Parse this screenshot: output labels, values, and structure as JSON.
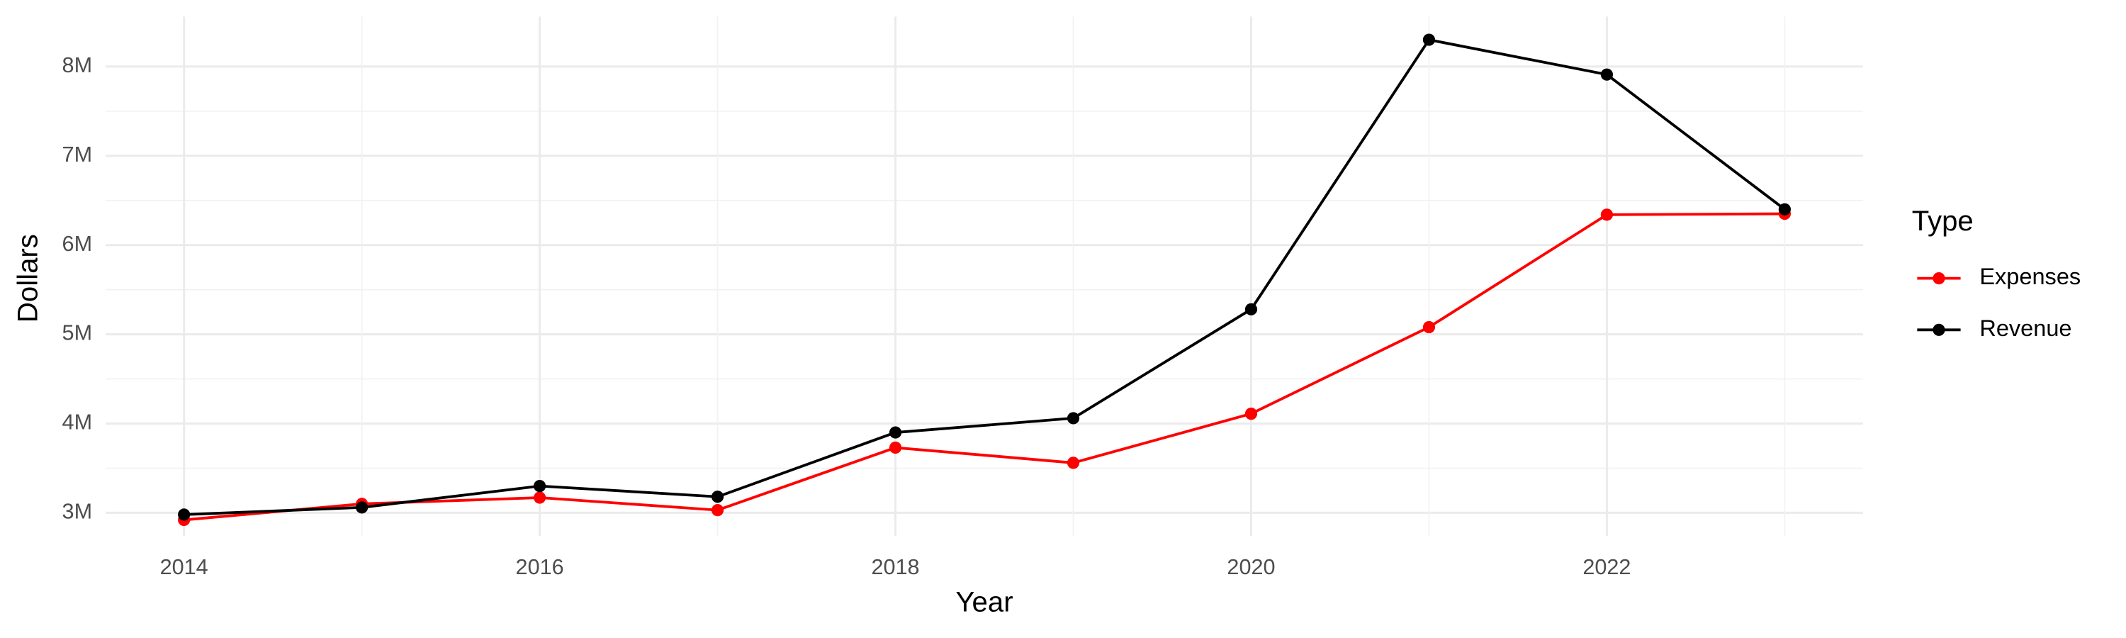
{
  "chart_data": {
    "type": "line",
    "x_label": "Year",
    "y_label": "Dollars",
    "legend_title": "Type",
    "x": [
      2014,
      2015,
      2016,
      2017,
      2018,
      2019,
      2020,
      2021,
      2022,
      2023
    ],
    "series": [
      {
        "name": "Expenses",
        "color": "#ff0000",
        "values": [
          2920000,
          3100000,
          3170000,
          3030000,
          3730000,
          3560000,
          4110000,
          5080000,
          6340000,
          6350000
        ]
      },
      {
        "name": "Revenue",
        "color": "#000000",
        "values": [
          2980000,
          3060000,
          3300000,
          3180000,
          3900000,
          4060000,
          5280000,
          8300000,
          7910000,
          6400000
        ]
      }
    ],
    "xlim": [
      2013.56,
      2023.44
    ],
    "ylim": [
      2740000,
      8560000
    ],
    "xticks": [
      2014,
      2016,
      2018,
      2020,
      2022
    ],
    "yticks": [
      {
        "value": 3000000,
        "label": "3M"
      },
      {
        "value": 4000000,
        "label": "4M"
      },
      {
        "value": 5000000,
        "label": "5M"
      },
      {
        "value": 6000000,
        "label": "6M"
      },
      {
        "value": 7000000,
        "label": "7M"
      },
      {
        "value": 8000000,
        "label": "8M"
      }
    ],
    "grid": true,
    "legend_position": "right"
  }
}
